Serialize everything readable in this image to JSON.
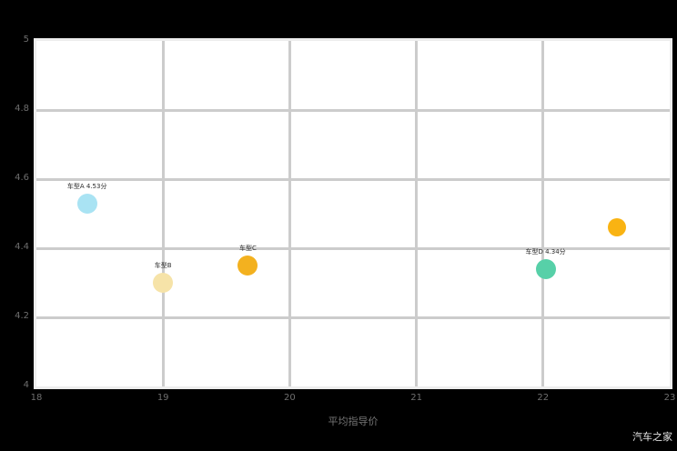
{
  "watermark": "汽车之家",
  "chart_data": {
    "type": "scatter",
    "title": "",
    "xlabel": "平均指导价",
    "ylabel": "",
    "xlim": [
      18,
      23
    ],
    "ylim": [
      4,
      5
    ],
    "grid": true,
    "legend": "none",
    "background": "#000000",
    "plot_background": "#ffffff",
    "gridline_color": "#cccccc",
    "tick_color": "#6e6e6e",
    "x_ticks": {
      "values": [
        18,
        19,
        20,
        21,
        22,
        23
      ],
      "labels": [
        "18",
        "19",
        "20",
        "21",
        "22",
        "23"
      ]
    },
    "y_ticks": {
      "values": [
        5,
        4.8,
        4.6,
        4.4,
        4.2,
        4
      ],
      "labels": [
        "5",
        "4.8",
        "4.6",
        "4.4",
        "4.2",
        "4"
      ]
    },
    "points": [
      {
        "label": "车型A 4.53分",
        "x": 18.4,
        "y": 4.53,
        "r": 11,
        "color": "#a9e3f3"
      },
      {
        "label": "车型B",
        "x": 19.0,
        "y": 4.3,
        "r": 11,
        "color": "#f6e3a8"
      },
      {
        "label": "车型C",
        "x": 19.67,
        "y": 4.35,
        "r": 11,
        "color": "#f3b11f"
      },
      {
        "label": "车型D 4.34分",
        "x": 22.02,
        "y": 4.34,
        "r": 11,
        "color": "#57d0a8"
      },
      {
        "label": "",
        "x": 22.58,
        "y": 4.46,
        "r": 10,
        "color": "#f9b312"
      }
    ]
  }
}
